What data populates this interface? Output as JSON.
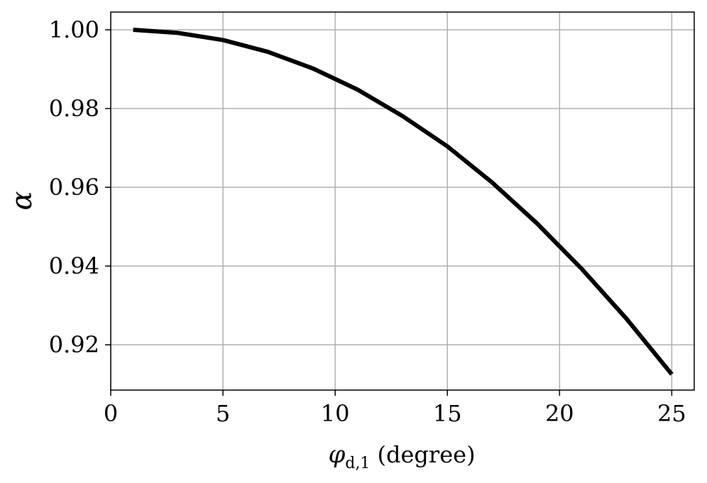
{
  "chart_data": {
    "type": "line",
    "title": "",
    "xlabel": "φd,1 (degree)",
    "ylabel": "α",
    "xlim": [
      0,
      26
    ],
    "ylim": [
      0.9085,
      1.0045
    ],
    "x_ticks": [
      0,
      5,
      10,
      15,
      20,
      25
    ],
    "x_tick_labels": [
      "0",
      "5",
      "10",
      "15",
      "20",
      "25"
    ],
    "y_ticks": [
      0.92,
      0.94,
      0.96,
      0.98,
      1.0
    ],
    "y_tick_labels": [
      "0.92",
      "0.94",
      "0.96",
      "0.98",
      "1.00"
    ],
    "grid": true,
    "legend": "none",
    "series": [
      {
        "color": "#000000",
        "x": [
          1,
          3,
          5,
          7,
          9,
          11,
          13,
          15,
          17,
          19,
          21,
          23,
          25
        ],
        "y": [
          1.0,
          0.9992,
          0.9974,
          0.9944,
          0.9902,
          0.9848,
          0.9781,
          0.9704,
          0.9612,
          0.9508,
          0.9392,
          0.9265,
          0.9125
        ]
      }
    ]
  }
}
